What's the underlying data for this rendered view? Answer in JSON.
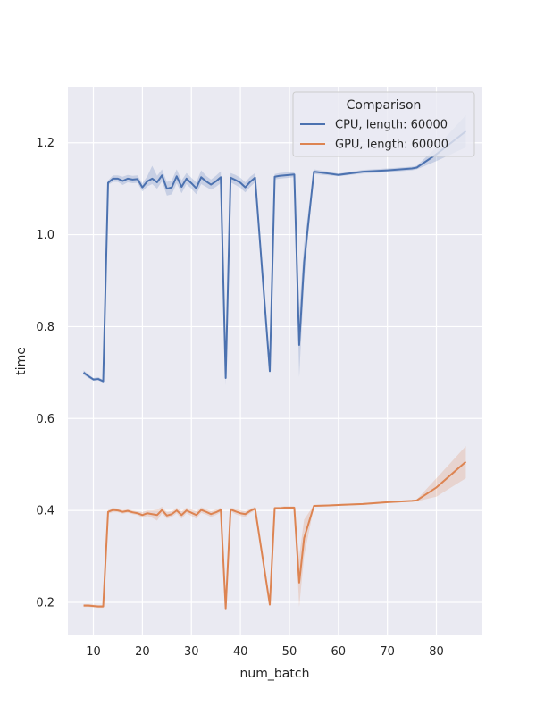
{
  "chart_data": {
    "type": "line",
    "xlabel": "num_batch",
    "ylabel": "time",
    "xlim": [
      4.8,
      89.2
    ],
    "ylim": [
      0.128,
      1.322
    ],
    "xticks": [
      10,
      20,
      30,
      40,
      50,
      60,
      70,
      80
    ],
    "yticks": [
      0.2,
      0.4,
      0.6,
      0.8,
      1.0,
      1.2
    ],
    "ytick_labels": [
      "0.2",
      "0.4",
      "0.6",
      "0.8",
      "1.0",
      "1.2"
    ],
    "grid": true,
    "legend": {
      "title": "Comparison",
      "placement": "top-right",
      "entries": [
        "CPU, length: 60000",
        "GPU, length: 60000"
      ]
    },
    "series": [
      {
        "name": "CPU, length: 60000",
        "color": "#4c72b0",
        "x": [
          8,
          9,
          10,
          11,
          12,
          13,
          14,
          15,
          16,
          17,
          18,
          19,
          20,
          21,
          22,
          23,
          24,
          25,
          26,
          27,
          28,
          29,
          30,
          31,
          32,
          33,
          34,
          35,
          36,
          37,
          38,
          39,
          40,
          41,
          42,
          43,
          46,
          47,
          48,
          49,
          50,
          51,
          52,
          53,
          55,
          58,
          60,
          65,
          70,
          75,
          76,
          80,
          86
        ],
        "y": [
          0.7,
          0.692,
          0.685,
          0.686,
          0.681,
          1.113,
          1.122,
          1.122,
          1.117,
          1.122,
          1.12,
          1.121,
          1.103,
          1.116,
          1.122,
          1.114,
          1.129,
          1.1,
          1.103,
          1.127,
          1.104,
          1.122,
          1.112,
          1.101,
          1.125,
          1.116,
          1.109,
          1.116,
          1.125,
          0.688,
          1.124,
          1.119,
          1.113,
          1.103,
          1.115,
          1.124,
          0.703,
          1.126,
          1.128,
          1.129,
          1.13,
          1.131,
          0.76,
          0.94,
          1.137,
          1.133,
          1.13,
          1.137,
          1.14,
          1.144,
          1.146,
          1.175,
          1.225
        ],
        "ci_low": [
          0.695,
          0.688,
          0.682,
          0.683,
          0.678,
          1.108,
          1.115,
          1.115,
          1.108,
          1.114,
          1.112,
          1.113,
          1.094,
          1.105,
          1.11,
          1.1,
          1.116,
          1.085,
          1.088,
          1.112,
          1.09,
          1.11,
          1.1,
          1.088,
          1.11,
          1.104,
          1.098,
          1.104,
          1.112,
          0.672,
          1.114,
          1.108,
          1.102,
          1.092,
          1.104,
          1.114,
          0.7,
          1.12,
          1.122,
          1.123,
          1.124,
          1.125,
          0.69,
          0.9,
          1.132,
          1.129,
          1.127,
          1.133,
          1.136,
          1.14,
          1.142,
          1.16,
          1.19
        ],
        "ci_high": [
          0.705,
          0.696,
          0.688,
          0.69,
          0.684,
          1.118,
          1.129,
          1.129,
          1.126,
          1.13,
          1.128,
          1.129,
          1.112,
          1.127,
          1.15,
          1.128,
          1.142,
          1.115,
          1.118,
          1.142,
          1.118,
          1.134,
          1.124,
          1.114,
          1.14,
          1.128,
          1.12,
          1.128,
          1.138,
          0.704,
          1.134,
          1.13,
          1.124,
          1.114,
          1.126,
          1.134,
          0.706,
          1.132,
          1.134,
          1.135,
          1.136,
          1.137,
          0.83,
          0.98,
          1.142,
          1.137,
          1.133,
          1.141,
          1.144,
          1.148,
          1.15,
          1.19,
          1.26
        ]
      },
      {
        "name": "GPU, length: 60000",
        "color": "#dd8452",
        "x": [
          8,
          9,
          10,
          11,
          12,
          13,
          14,
          15,
          16,
          17,
          18,
          19,
          20,
          21,
          22,
          23,
          24,
          25,
          26,
          27,
          28,
          29,
          30,
          31,
          32,
          33,
          34,
          35,
          36,
          37,
          38,
          39,
          40,
          41,
          42,
          43,
          46,
          47,
          48,
          49,
          50,
          51,
          52,
          53,
          55,
          58,
          60,
          65,
          70,
          75,
          76,
          80,
          86
        ],
        "y": [
          0.193,
          0.193,
          0.192,
          0.191,
          0.191,
          0.397,
          0.401,
          0.4,
          0.397,
          0.399,
          0.396,
          0.394,
          0.39,
          0.394,
          0.392,
          0.39,
          0.401,
          0.389,
          0.392,
          0.4,
          0.39,
          0.4,
          0.395,
          0.39,
          0.401,
          0.397,
          0.392,
          0.396,
          0.401,
          0.187,
          0.402,
          0.398,
          0.394,
          0.392,
          0.399,
          0.404,
          0.195,
          0.405,
          0.405,
          0.406,
          0.406,
          0.406,
          0.243,
          0.34,
          0.41,
          0.411,
          0.412,
          0.414,
          0.418,
          0.421,
          0.422,
          0.45,
          0.506
        ],
        "ci_low": [
          0.19,
          0.19,
          0.189,
          0.188,
          0.188,
          0.393,
          0.396,
          0.396,
          0.393,
          0.395,
          0.392,
          0.39,
          0.384,
          0.388,
          0.384,
          0.378,
          0.394,
          0.382,
          0.386,
          0.394,
          0.382,
          0.394,
          0.388,
          0.382,
          0.395,
          0.391,
          0.386,
          0.39,
          0.396,
          0.184,
          0.398,
          0.392,
          0.388,
          0.386,
          0.394,
          0.4,
          0.193,
          0.402,
          0.402,
          0.403,
          0.403,
          0.403,
          0.19,
          0.3,
          0.408,
          0.409,
          0.41,
          0.412,
          0.416,
          0.419,
          0.42,
          0.43,
          0.47
        ],
        "ci_high": [
          0.196,
          0.196,
          0.195,
          0.194,
          0.194,
          0.401,
          0.406,
          0.404,
          0.401,
          0.403,
          0.4,
          0.398,
          0.396,
          0.4,
          0.4,
          0.402,
          0.408,
          0.396,
          0.398,
          0.406,
          0.398,
          0.406,
          0.402,
          0.398,
          0.407,
          0.403,
          0.398,
          0.402,
          0.406,
          0.19,
          0.406,
          0.404,
          0.4,
          0.398,
          0.404,
          0.408,
          0.197,
          0.408,
          0.408,
          0.409,
          0.409,
          0.409,
          0.3,
          0.38,
          0.412,
          0.413,
          0.414,
          0.416,
          0.42,
          0.423,
          0.424,
          0.47,
          0.54
        ]
      }
    ]
  }
}
